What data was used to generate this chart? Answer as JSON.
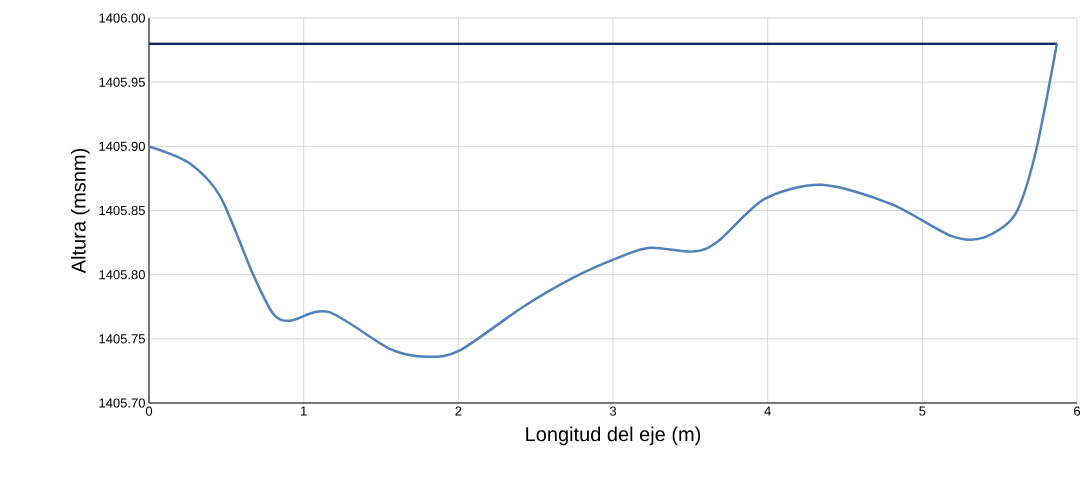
{
  "chart_data": {
    "type": "line",
    "xlabel": "Longitud del eje (m)",
    "ylabel": "Altura (msnm)",
    "xlim": [
      0,
      6
    ],
    "xticks": [
      0,
      1,
      2,
      3,
      4,
      5,
      6
    ],
    "ylim": [
      1405.7,
      1406.0
    ],
    "yticks": [
      {
        "value": 1405.7,
        "label": "1405.70"
      },
      {
        "value": 1405.75,
        "label": "1405.75"
      },
      {
        "value": 1405.8,
        "label": "1405.80"
      },
      {
        "value": 1405.85,
        "label": "1405.85"
      },
      {
        "value": 1405.9,
        "label": "1405.90"
      },
      {
        "value": 1405.95,
        "label": "1405.95"
      },
      {
        "value": 1406.0,
        "label": "1406.00"
      }
    ],
    "grid": true,
    "legend": false,
    "marker": "none",
    "line_style": "solid",
    "series": [
      {
        "color": "#0d2a5e",
        "x": [
          0,
          5.87
        ],
        "values": [
          1405.98,
          1405.98
        ]
      },
      {
        "color": "#4f81bd",
        "x": [
          0,
          0.26,
          0.46,
          0.67,
          0.8,
          0.91,
          1.16,
          1.56,
          1.8,
          2.01,
          2.42,
          2.75,
          3.05,
          3.24,
          3.52,
          3.68,
          3.98,
          4.35,
          4.8,
          5.19,
          5.4,
          5.6,
          5.73,
          5.87
        ],
        "values": [
          1405.9,
          1405.887,
          1405.861,
          1405.801,
          1405.77,
          1405.764,
          1405.771,
          1405.742,
          1405.736,
          1405.741,
          1405.775,
          1405.798,
          1405.814,
          1405.821,
          1405.818,
          1405.826,
          1405.859,
          1405.87,
          1405.855,
          1405.83,
          1405.829,
          1405.847,
          1405.894,
          1405.98
        ]
      }
    ]
  }
}
